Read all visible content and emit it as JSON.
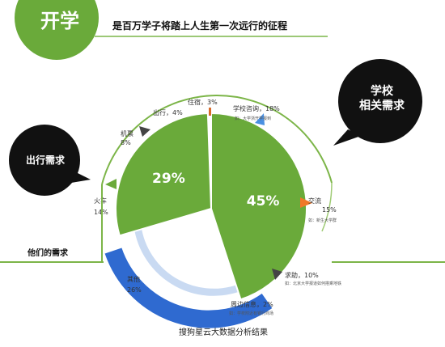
{
  "header": {
    "badge": "开学",
    "tagline": "是百万学子将踏上人生第一次远行的征程"
  },
  "bubbles": {
    "school": [
      "学校",
      "相关需求"
    ],
    "travel": "出行需求",
    "needs": "他们的需求"
  },
  "caption": "搜狗星云大数据分析结果",
  "colors": {
    "green": "#6aaa3a",
    "black": "#111111",
    "blue": "#2f6ad0",
    "lightblue": "#c9daf2",
    "orange": "#f07828",
    "gray": "#444444"
  },
  "chart_data": [
    {
      "type": "pie",
      "title": "",
      "slices": [
        {
          "label": "学校",
          "value": 45,
          "text": "45%"
        },
        {
          "label": "出行",
          "value": 29,
          "text": "29%"
        }
      ]
    },
    {
      "type": "table",
      "title": "",
      "items": [
        {
          "label": "住宿，",
          "value": "3%"
        },
        {
          "label": "学校咨询，",
          "value": "18%",
          "note": "如：大学浙开学报到"
        },
        {
          "label": "出行，",
          "value": "4%"
        },
        {
          "label": "机票",
          "value": "8%"
        },
        {
          "label": "交流",
          "value": "15%",
          "note": "如：新生大学群"
        },
        {
          "label": "火车",
          "value": "14%"
        },
        {
          "label": "求助，",
          "value": "10%",
          "note": "如：北京大学报道如何搭乘地铁"
        },
        {
          "label": "其他",
          "value": "26%"
        },
        {
          "label": "周边信息，",
          "value": "2%",
          "note": "如：学校附近有银行商场"
        }
      ]
    }
  ]
}
